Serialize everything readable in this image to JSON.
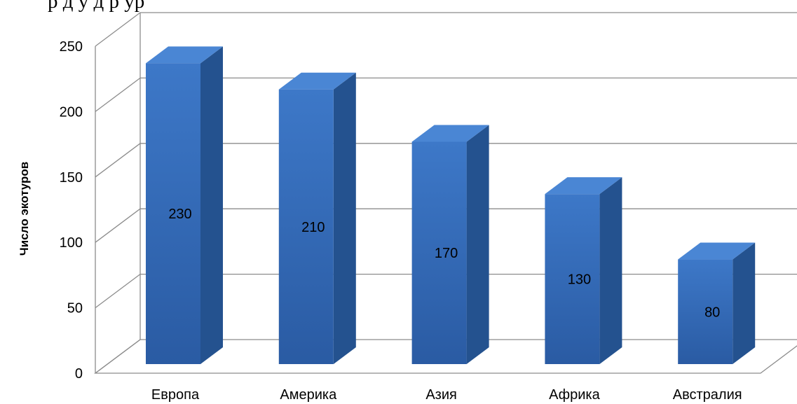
{
  "page": {
    "title_fragment": "р        д           у         д  р               ур"
  },
  "chart_data": {
    "type": "bar",
    "categories": [
      "Европа",
      "Америка",
      "Азия",
      "Африка",
      "Австралия"
    ],
    "values": [
      230,
      210,
      170,
      130,
      80
    ],
    "data_labels": [
      "230",
      "210",
      "170",
      "130",
      "80"
    ],
    "ylabel": "Число экотуров",
    "xlabel": "",
    "ylim": [
      0,
      250
    ],
    "y_ticks": [
      0,
      50,
      100,
      150,
      200,
      250
    ],
    "grid": true,
    "legend": "none",
    "style": "3d-column",
    "colors": {
      "bar_front": "#3167b6",
      "bar_front_light": "#3d78c8",
      "bar_side": "#24528f",
      "bar_top": "#4a86d4",
      "grid": "#8c8c8c"
    }
  }
}
